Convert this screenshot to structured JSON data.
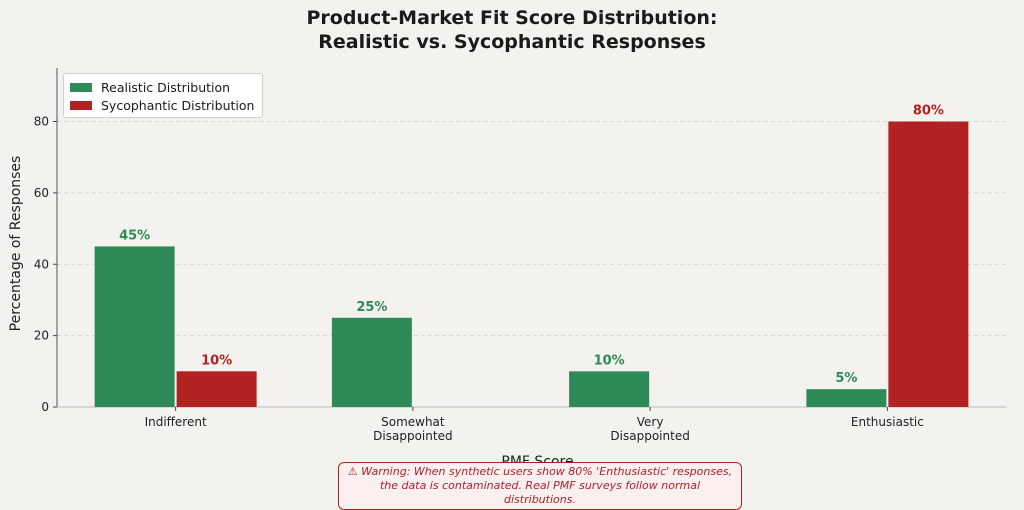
{
  "chart_data": {
    "type": "bar",
    "title": "Product-Market Fit Score Distribution:\nRealistic vs. Sycophantic Responses",
    "xlabel": "PMF Score",
    "ylabel": "Percentage of Responses",
    "categories": [
      "Indifferent",
      "Somewhat\nDisappointed",
      "Very\nDisappointed",
      "Enthusiastic"
    ],
    "series": [
      {
        "name": "Realistic Distribution",
        "values": [
          45,
          25,
          10,
          5
        ],
        "color": "#2e8b57",
        "labels": [
          "45%",
          "25%",
          "10%",
          "5%"
        ]
      },
      {
        "name": "Sycophantic Distribution",
        "values": [
          10,
          0,
          0,
          80
        ],
        "color": "#b22222",
        "labels": [
          "10%",
          "",
          "",
          "80%"
        ]
      }
    ],
    "ylim": [
      0,
      95
    ],
    "yticks": [
      0,
      20,
      40,
      60,
      80
    ],
    "grid": "y-dashed",
    "legend": "top-left"
  },
  "annotation": {
    "warning": "⚠ Warning: When synthetic users show 80% 'Enthusiastic' responses,\nthe data is contaminated. Real PMF surveys follow normal distributions."
  }
}
